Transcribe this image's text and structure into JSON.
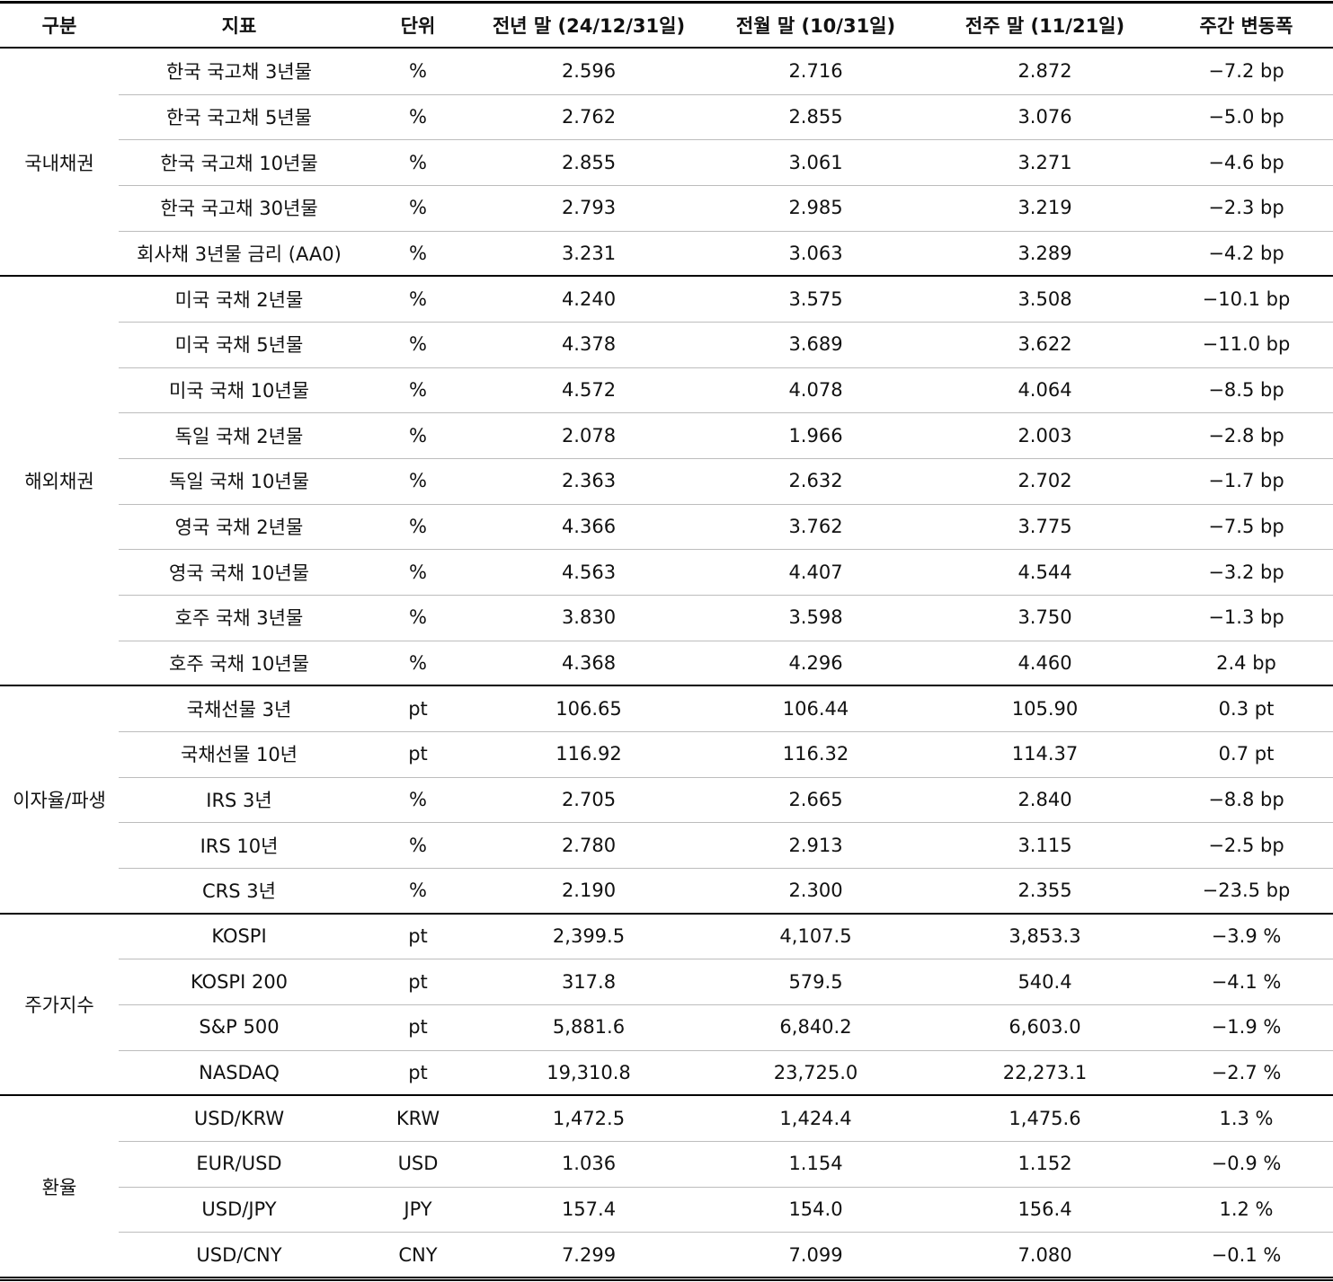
{
  "header": {
    "columns": [
      "구분",
      "지표",
      "단위",
      "전년 말 (24/12/31일)",
      "전월 말 (10/31일)",
      "전주 말 (11/21일)",
      "주간 변동폭"
    ]
  },
  "groups": [
    {
      "name": "국내채권",
      "rows": [
        [
          "한국 국고채 3년물",
          "%",
          "2.596",
          "2.716",
          "2.872",
          "−7.2 bp"
        ],
        [
          "한국 국고채 5년물",
          "%",
          "2.762",
          "2.855",
          "3.076",
          "−5.0 bp"
        ],
        [
          "한국 국고채 10년물",
          "%",
          "2.855",
          "3.061",
          "3.271",
          "−4.6 bp"
        ],
        [
          "한국 국고채 30년물",
          "%",
          "2.793",
          "2.985",
          "3.219",
          "−2.3 bp"
        ],
        [
          "회사채 3년물 금리 (AA0)",
          "%",
          "3.231",
          "3.063",
          "3.289",
          "−4.2 bp"
        ]
      ]
    },
    {
      "name": "해외채권",
      "rows": [
        [
          "미국 국채 2년물",
          "%",
          "4.240",
          "3.575",
          "3.508",
          "−10.1 bp"
        ],
        [
          "미국 국채 5년물",
          "%",
          "4.378",
          "3.689",
          "3.622",
          "−11.0 bp"
        ],
        [
          "미국 국채 10년물",
          "%",
          "4.572",
          "4.078",
          "4.064",
          "−8.5 bp"
        ],
        [
          "독일 국채 2년물",
          "%",
          "2.078",
          "1.966",
          "2.003",
          "−2.8 bp"
        ],
        [
          "독일 국채 10년물",
          "%",
          "2.363",
          "2.632",
          "2.702",
          "−1.7 bp"
        ],
        [
          "영국 국채 2년물",
          "%",
          "4.366",
          "3.762",
          "3.775",
          "−7.5 bp"
        ],
        [
          "영국 국채 10년물",
          "%",
          "4.563",
          "4.407",
          "4.544",
          "−3.2 bp"
        ],
        [
          "호주 국채 3년물",
          "%",
          "3.830",
          "3.598",
          "3.750",
          "−1.3 bp"
        ],
        [
          "호주 국채 10년물",
          "%",
          "4.368",
          "4.296",
          "4.460",
          "2.4 bp"
        ]
      ]
    },
    {
      "name": "이자율/파생",
      "rows": [
        [
          "국채선물 3년",
          "pt",
          "106.65",
          "106.44",
          "105.90",
          "0.3 pt"
        ],
        [
          "국채선물 10년",
          "pt",
          "116.92",
          "116.32",
          "114.37",
          "0.7 pt"
        ],
        [
          "IRS 3년",
          "%",
          "2.705",
          "2.665",
          "2.840",
          "−8.8 bp"
        ],
        [
          "IRS 10년",
          "%",
          "2.780",
          "2.913",
          "3.115",
          "−2.5 bp"
        ],
        [
          "CRS 3년",
          "%",
          "2.190",
          "2.300",
          "2.355",
          "−23.5 bp"
        ]
      ]
    },
    {
      "name": "주가지수",
      "rows": [
        [
          "KOSPI",
          "pt",
          "2,399.5",
          "4,107.5",
          "3,853.3",
          "−3.9 %"
        ],
        [
          "KOSPI 200",
          "pt",
          "317.8",
          "579.5",
          "540.4",
          "−4.1 %"
        ],
        [
          "S&P 500",
          "pt",
          "5,881.6",
          "6,840.2",
          "6,603.0",
          "−1.9 %"
        ],
        [
          "NASDAQ",
          "pt",
          "19,310.8",
          "23,725.0",
          "22,273.1",
          "−2.7 %"
        ]
      ]
    },
    {
      "name": "환율",
      "rows": [
        [
          "USD/KRW",
          "KRW",
          "1,472.5",
          "1,424.4",
          "1,475.6",
          "1.3 %"
        ],
        [
          "EUR/USD",
          "USD",
          "1.036",
          "1.154",
          "1.152",
          "−0.9 %"
        ],
        [
          "USD/JPY",
          "JPY",
          "157.4",
          "154.0",
          "156.4",
          "1.2 %"
        ],
        [
          "USD/CNY",
          "CNY",
          "7.299",
          "7.099",
          "7.080",
          "−0.1 %"
        ]
      ]
    }
  ]
}
